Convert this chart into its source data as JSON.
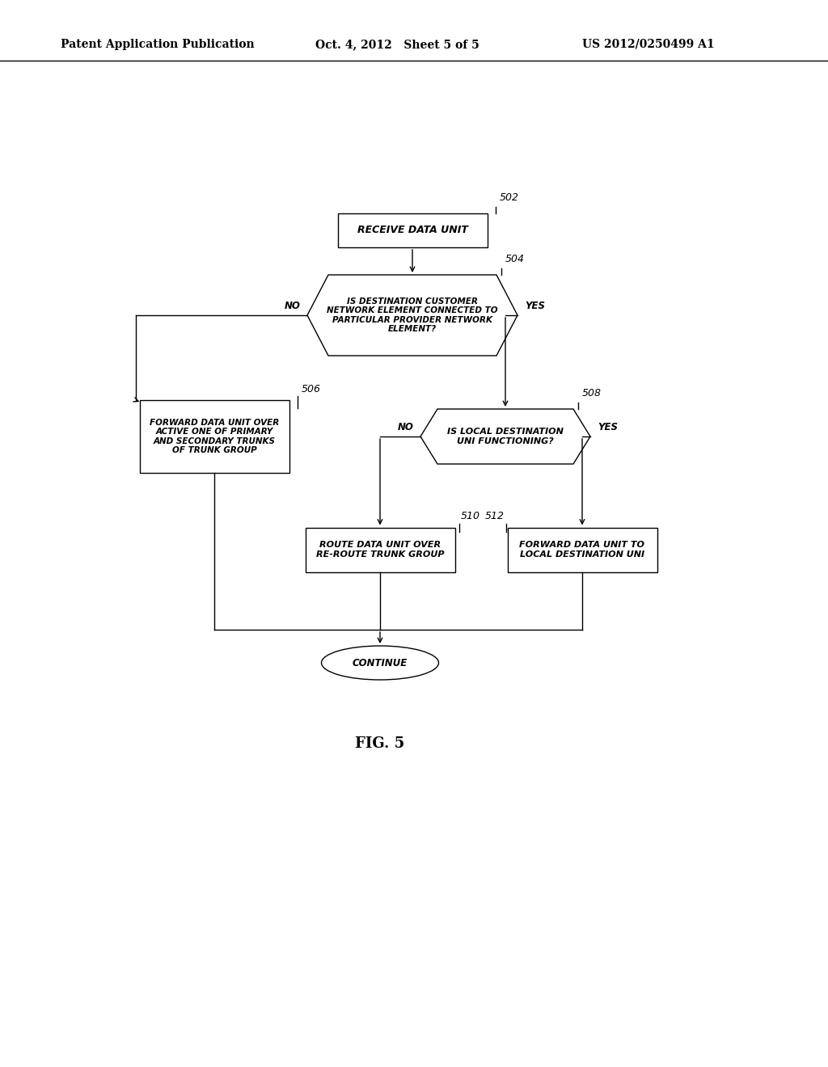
{
  "bg_color": "#ffffff",
  "header_left": "Patent Application Publication",
  "header_center": "Oct. 4, 2012   Sheet 5 of 5",
  "header_right": "US 2012/0250499 A1",
  "fig_label": "FIG. 5"
}
